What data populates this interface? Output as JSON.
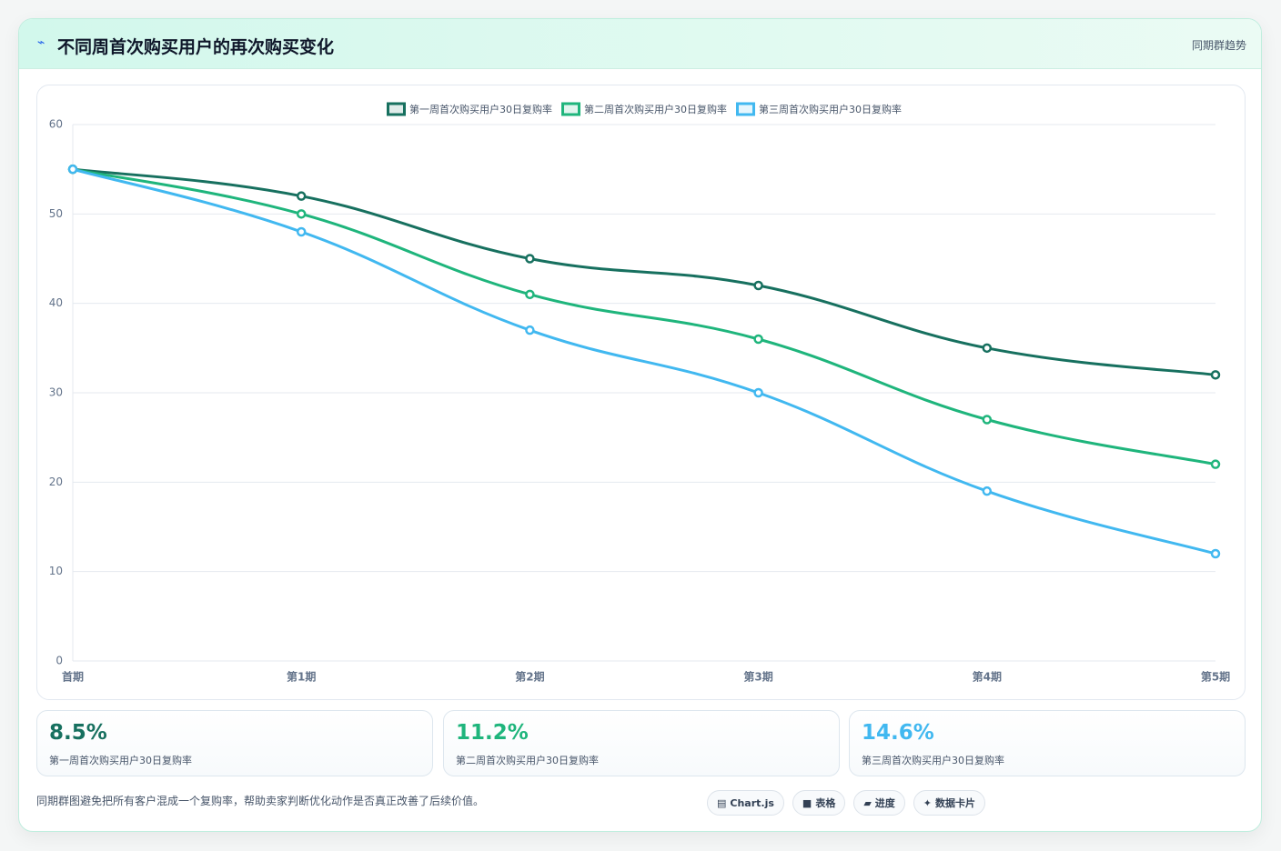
{
  "header": {
    "title": "不同周首次购买用户的再次购买变化",
    "tag": "同期群趋势"
  },
  "chart_data": {
    "type": "line",
    "smooth": true,
    "grid": true,
    "legend": "top",
    "categories": [
      "首期",
      "第1期",
      "第2期",
      "第3期",
      "第4期",
      "第5期"
    ],
    "ylim": [
      0,
      60
    ],
    "yticks": [
      0,
      10,
      20,
      30,
      40,
      50,
      60
    ],
    "series": [
      {
        "name": "第一周首次购买用户30日复购率",
        "color": "#17705f",
        "values": [
          55,
          52,
          45,
          42,
          35,
          32
        ]
      },
      {
        "name": "第二周首次购买用户30日复购率",
        "color": "#1fb57c",
        "values": [
          55,
          50,
          41,
          36,
          27,
          22
        ]
      },
      {
        "name": "第三周首次购买用户30日复购率",
        "color": "#41b8f0",
        "values": [
          55,
          48,
          37,
          30,
          19,
          12
        ]
      }
    ]
  },
  "kpis": [
    {
      "value": "8.5%",
      "label": "第一周首次购买用户30日复购率"
    },
    {
      "value": "11.2%",
      "label": "第二周首次购买用户30日复购率"
    },
    {
      "value": "14.6%",
      "label": "第三周首次购买用户30日复购率"
    }
  ],
  "footer": {
    "note": "同期群图避免把所有客户混成一个复购率，帮助卖家判断优化动作是否真正改善了后续价值。",
    "chips": [
      "Chart.js",
      "表格",
      "进度",
      "数据卡片"
    ]
  }
}
